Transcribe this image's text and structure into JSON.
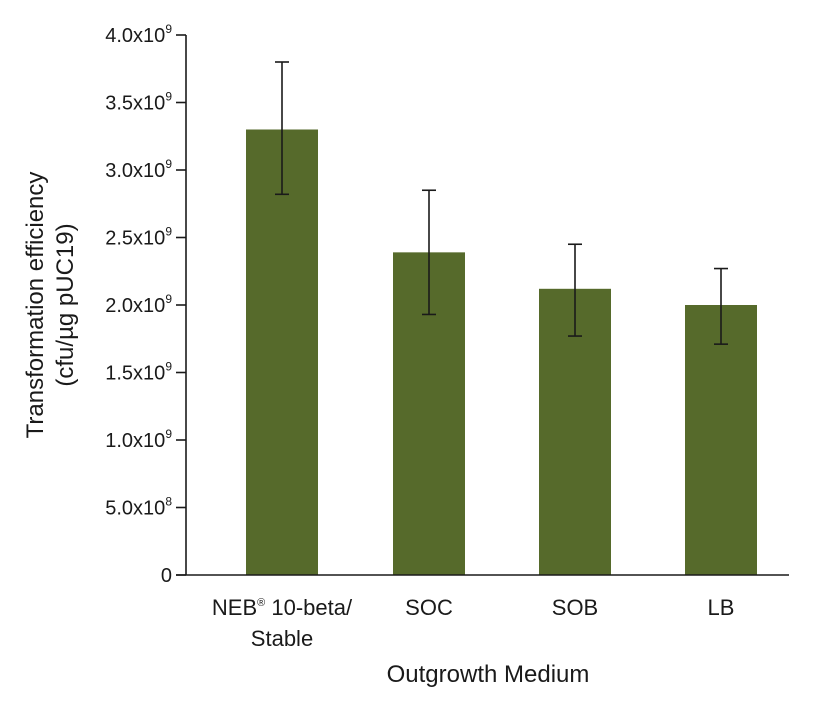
{
  "chart_data": {
    "type": "bar",
    "categories": [
      {
        "lines": [
          "NEB® 10-beta/",
          "Stable"
        ]
      },
      {
        "lines": [
          "SOC"
        ]
      },
      {
        "lines": [
          "SOB"
        ]
      },
      {
        "lines": [
          "LB"
        ]
      }
    ],
    "values": [
      3300000000.0,
      2390000000.0,
      2120000000.0,
      2000000000.0
    ],
    "error_low": [
      2820000000.0,
      1930000000.0,
      1770000000.0,
      1710000000.0
    ],
    "error_high": [
      3800000000.0,
      2850000000.0,
      2450000000.0,
      2270000000.0
    ],
    "xlabel": "Outgrowth Medium",
    "ylabel_lines": [
      "Transformation efficiency",
      "(cfu/µg pUC19)"
    ],
    "ylim": [
      0,
      4000000000.0
    ],
    "yticks": [
      {
        "value": 0,
        "mantissa": "0",
        "exponent": ""
      },
      {
        "value": 500000000.0,
        "mantissa": "5.0x10",
        "exponent": "8"
      },
      {
        "value": 1000000000.0,
        "mantissa": "1.0x10",
        "exponent": "9"
      },
      {
        "value": 1500000000.0,
        "mantissa": "1.5x10",
        "exponent": "9"
      },
      {
        "value": 2000000000.0,
        "mantissa": "2.0x10",
        "exponent": "9"
      },
      {
        "value": 2500000000.0,
        "mantissa": "2.5x10",
        "exponent": "9"
      },
      {
        "value": 3000000000.0,
        "mantissa": "3.0x10",
        "exponent": "9"
      },
      {
        "value": 3500000000.0,
        "mantissa": "3.5x10",
        "exponent": "9"
      },
      {
        "value": 4000000000.0,
        "mantissa": "4.0x10",
        "exponent": "9"
      }
    ],
    "bar_color": "#566a2b",
    "grid": false,
    "legend": "none"
  }
}
